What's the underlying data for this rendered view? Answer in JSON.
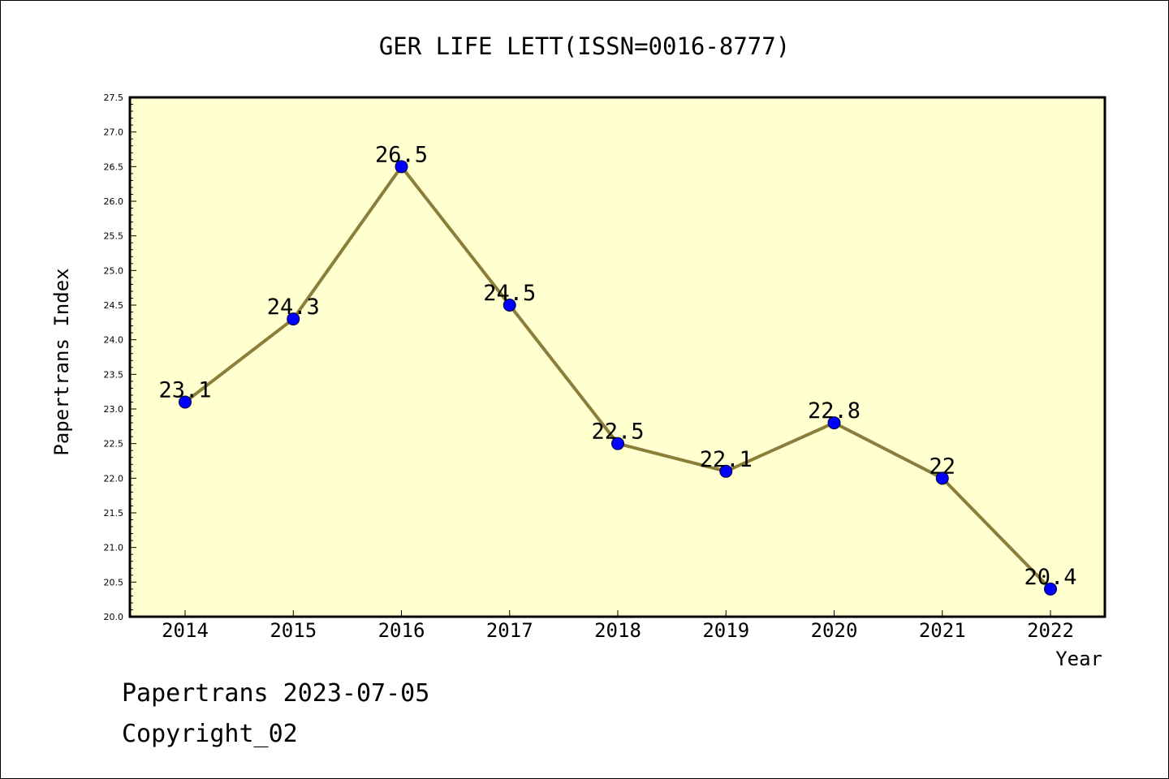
{
  "chart_data": {
    "type": "line",
    "title": "GER LIFE LETT(ISSN=0016-8777)",
    "xlabel": "Year",
    "ylabel": "Papertrans Index",
    "categories": [
      "2014",
      "2015",
      "2016",
      "2017",
      "2018",
      "2019",
      "2020",
      "2021",
      "2022"
    ],
    "series": [
      {
        "values": [
          23.1,
          24.3,
          26.5,
          24.5,
          22.5,
          22.1,
          22.8,
          22.0,
          20.4
        ],
        "labels": [
          "23.1",
          "24.3",
          "26.5",
          "24.5",
          "22.5",
          "22.1",
          "22.8",
          "22",
          "20.4"
        ],
        "line_color": "#8b7d3a",
        "marker_color": "#0000ff"
      }
    ],
    "ylim": [
      20.0,
      27.5
    ],
    "y_ticks": [
      "20.0",
      "20.5",
      "21.0",
      "21.5",
      "22.0",
      "22.5",
      "23.0",
      "23.5",
      "24.0",
      "24.5",
      "25.0",
      "25.5",
      "26.0",
      "26.5",
      "27.0",
      "27.5"
    ],
    "plot_background": "#ffffd0",
    "grid": false,
    "legend": "none"
  },
  "footer": {
    "line1": "Papertrans 2023-07-05",
    "line2": "Copyright_02"
  }
}
